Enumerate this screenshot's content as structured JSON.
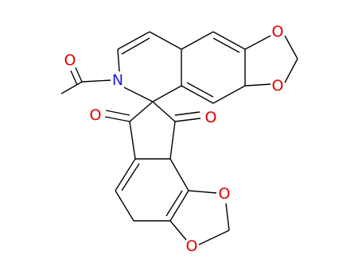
{
  "nodes": [
    {
      "label": "O"
    },
    {
      "label": "N"
    },
    {
      "label": "O"
    },
    {
      "label": "O"
    },
    {
      "label": "O"
    },
    {
      "label": "O"
    },
    {
      "label": "O"
    },
    {
      "label": "O"
    }
  ]
}
